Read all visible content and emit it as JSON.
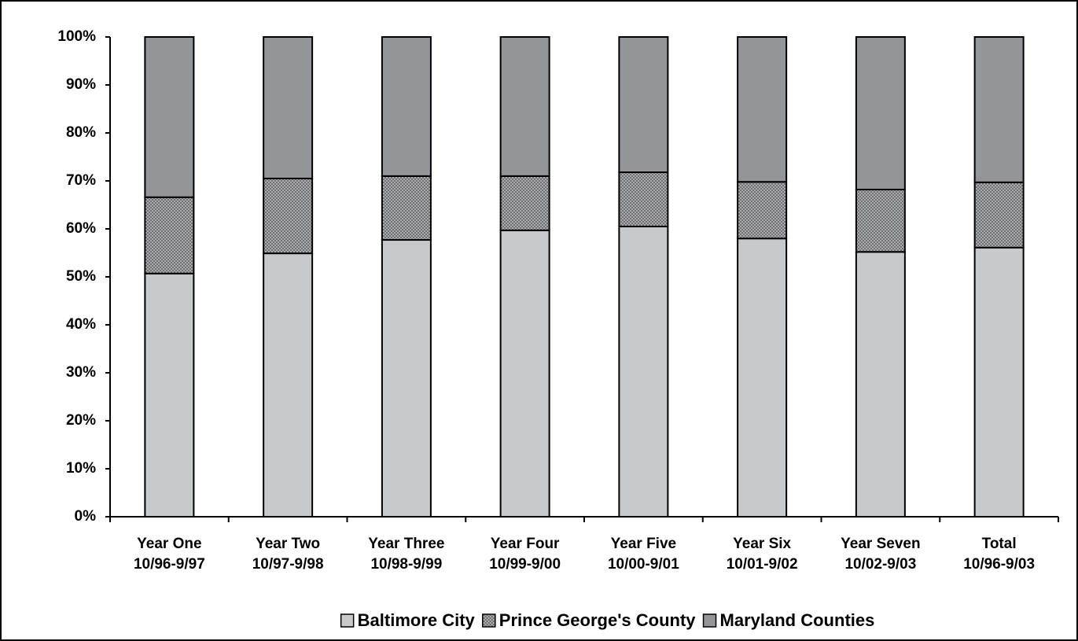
{
  "chart_data": {
    "type": "stacked-bar",
    "categories": [
      [
        "Year One",
        "10/96-9/97"
      ],
      [
        "Year Two",
        "10/97-9/98"
      ],
      [
        "Year Three",
        "10/98-9/99"
      ],
      [
        "Year Four",
        "10/99-9/00"
      ],
      [
        "Year Five",
        "10/00-9/01"
      ],
      [
        "Year Six",
        "10/01-9/02"
      ],
      [
        "Year Seven",
        "10/02-9/03"
      ],
      [
        "Total",
        "10/96-9/03"
      ]
    ],
    "series": [
      {
        "name": "Baltimore City",
        "color": "#c8c9cb",
        "values": [
          50.7,
          54.9,
          57.7,
          59.7,
          60.5,
          58.0,
          55.2,
          56.1
        ]
      },
      {
        "name": "Prince George's County",
        "color": "#6d6e71",
        "hatch": true,
        "values": [
          15.9,
          15.6,
          13.3,
          11.3,
          11.3,
          11.8,
          13.0,
          13.6
        ]
      },
      {
        "name": "Maryland Counties",
        "color": "#939598",
        "values": [
          33.4,
          29.5,
          29.0,
          29.0,
          28.2,
          30.2,
          31.8,
          30.3
        ]
      }
    ],
    "ylim": [
      0,
      100
    ],
    "yticks": [
      {
        "value": 0,
        "label": "0%"
      },
      {
        "value": 10,
        "label": "10%"
      },
      {
        "value": 20,
        "label": "20%"
      },
      {
        "value": 30,
        "label": "30%"
      },
      {
        "value": 40,
        "label": "40%"
      },
      {
        "value": 50,
        "label": "50%"
      },
      {
        "value": 60,
        "label": "60%"
      },
      {
        "value": 70,
        "label": "70%"
      },
      {
        "value": 80,
        "label": "80%"
      },
      {
        "value": 90,
        "label": "90%"
      },
      {
        "value": 100,
        "label": "100%"
      }
    ],
    "grid": false,
    "legend": "bottom"
  }
}
